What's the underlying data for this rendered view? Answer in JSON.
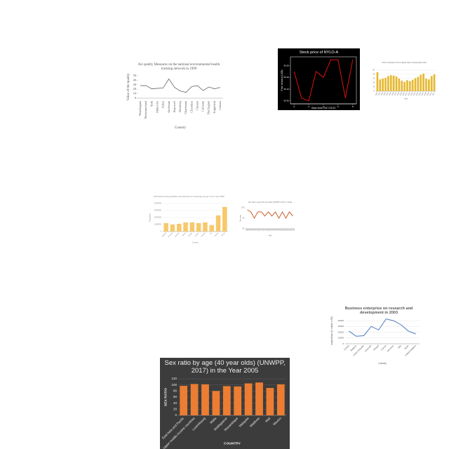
{
  "chart_data": [
    {
      "type": "line",
      "title": "Air quality Measures on the national environmental health tracking network in 1999",
      "x_label": "Country",
      "y_label": "Value of the quality",
      "categories": [
        "Washington",
        "Westmoreland",
        "York",
        "Abbeville",
        "Aiken",
        "Anderson",
        "Barnwell",
        "Berkeley",
        "Charleston",
        "Cherokee",
        "Chester",
        "Colleton",
        "Darlington",
        "Edgefield",
        "Greene"
      ],
      "values": [
        28,
        28,
        21,
        22,
        23,
        43,
        24,
        16,
        13,
        26,
        28,
        17,
        25,
        21,
        24
      ],
      "color": "#666666",
      "ylim": [
        0,
        50
      ],
      "yticks": [
        0,
        10,
        20,
        30,
        40,
        50
      ],
      "grid": false
    },
    {
      "type": "line",
      "title": "Stock price of NYLO-A",
      "x_label": "Days since 2017-03-03",
      "y_label": "Price of stock (USD)",
      "x": [
        0,
        1,
        2,
        3,
        4,
        5,
        6,
        7,
        8
      ],
      "values": [
        96.4,
        95.95,
        95.9,
        96.4,
        96.3,
        96.6,
        96.6,
        95.95,
        96.6
      ],
      "color": "#dd1111",
      "background": "#000000",
      "xlim": [
        -0.5,
        8.5
      ],
      "xticks": [
        0,
        2,
        4,
        6,
        8
      ],
      "ylim": [
        95.85,
        96.65
      ],
      "yticks": [
        {
          "value": 95.9,
          "label": "95.90"
        },
        {
          "value": 96.1,
          "label": "96.10"
        },
        {
          "value": 96.3,
          "label": "96.30"
        },
        {
          "value": 96.5,
          "label": "96.50"
        }
      ],
      "grid": false
    },
    {
      "type": "bar",
      "title": "CO2 emissions from liquid fuel consumption (kt)",
      "x_label": "Year",
      "categories": [
        "1990",
        "1991",
        "1992",
        "1993",
        "1994",
        "1995",
        "1996",
        "1997",
        "1998",
        "1999",
        "2000",
        "2001",
        "2002",
        "2003",
        "2004",
        "2005",
        "2006",
        "2007",
        "2008",
        "2009",
        "2010",
        "2011"
      ],
      "values": [
        45,
        28,
        30,
        32,
        36,
        38,
        37,
        35,
        30,
        25,
        22,
        26,
        24,
        27,
        31,
        34,
        39,
        42,
        30,
        28,
        36,
        40
      ],
      "color": "#e6b931",
      "ylim": [
        0,
        50
      ],
      "yticks": [
        0,
        10,
        20,
        30,
        40,
        50
      ],
      "grid": true
    },
    {
      "type": "bar",
      "title": "Estimated total population (thousands) by broad age group in the Year 2005",
      "x_label": "Country",
      "y_label": "Population",
      "categories": [
        "Albania",
        "Armenia",
        "Bahrain",
        "Belize",
        "Bhutan",
        "Cyprus",
        "Estonia",
        "Fiji",
        "Ghana",
        "Kenya"
      ],
      "values": [
        12000000,
        10000000,
        11000000,
        13000000,
        13000000,
        12000000,
        13000000,
        9000000,
        23000000,
        35000000
      ],
      "color": "#f7c96b",
      "ylim": [
        0,
        40000000
      ],
      "yticks": [
        0,
        10000000,
        20000000,
        30000000,
        40000000
      ],
      "grid": true
    },
    {
      "type": "line",
      "title": "Sex ratio by age (60 year olds) (UNWPP, 2017) in Nepal",
      "x_label": "Year",
      "y_label": "Sex ratio",
      "categories": [
        "1950",
        "1955",
        "1960",
        "1965",
        "1970",
        "1975",
        "1980",
        "1985",
        "1990",
        "1995",
        "2000",
        "2005",
        "2010",
        "2015"
      ],
      "values": [
        99,
        98,
        95,
        98,
        98,
        96,
        98,
        96,
        98,
        95,
        98,
        95,
        98,
        96
      ],
      "color": "#c8602a",
      "ylim": [
        90,
        100
      ],
      "yticks": [
        90,
        95,
        100
      ],
      "grid": false
    },
    {
      "type": "line",
      "title": "Business enterprise on research and development in 2003",
      "x_label": "Country",
      "y_label": "expenditure (in million US$)",
      "categories": [
        "Austria",
        "Belgium",
        "Czech Republic",
        "Denmark",
        "Finland",
        "France",
        "Germany",
        "Italy",
        "Spain",
        "United Kingdom"
      ],
      "values": [
        22000,
        13000,
        14000,
        30000,
        24000,
        43000,
        40000,
        33000,
        22000,
        17000
      ],
      "color": "#4a7abf",
      "ylim": [
        0,
        45000
      ],
      "yticks": [
        0,
        10000,
        20000,
        30000,
        40000
      ],
      "grid": true
    },
    {
      "type": "bar",
      "title": "Sex ratio by age (40 year olds) (UNWPP, 2017) in the Year 2005",
      "x_label": "COUNTRY",
      "y_label": "SEX RATIO",
      "categories": [
        "East Asia and Pacific",
        "Upper middle income countries",
        "Luxembourg",
        "Malta",
        "Madagascar",
        "Mozambique",
        "Malaysia",
        "Maldives",
        "Mali",
        "Mexico"
      ],
      "values": [
        97,
        103,
        102,
        80,
        96,
        95,
        105,
        108,
        90,
        102
      ],
      "color": "#ec7d32",
      "background": "#3c3c3c",
      "ylim": [
        0,
        120
      ],
      "yticks": [
        0,
        20,
        40,
        60,
        80,
        100,
        120
      ],
      "grid": true
    }
  ]
}
